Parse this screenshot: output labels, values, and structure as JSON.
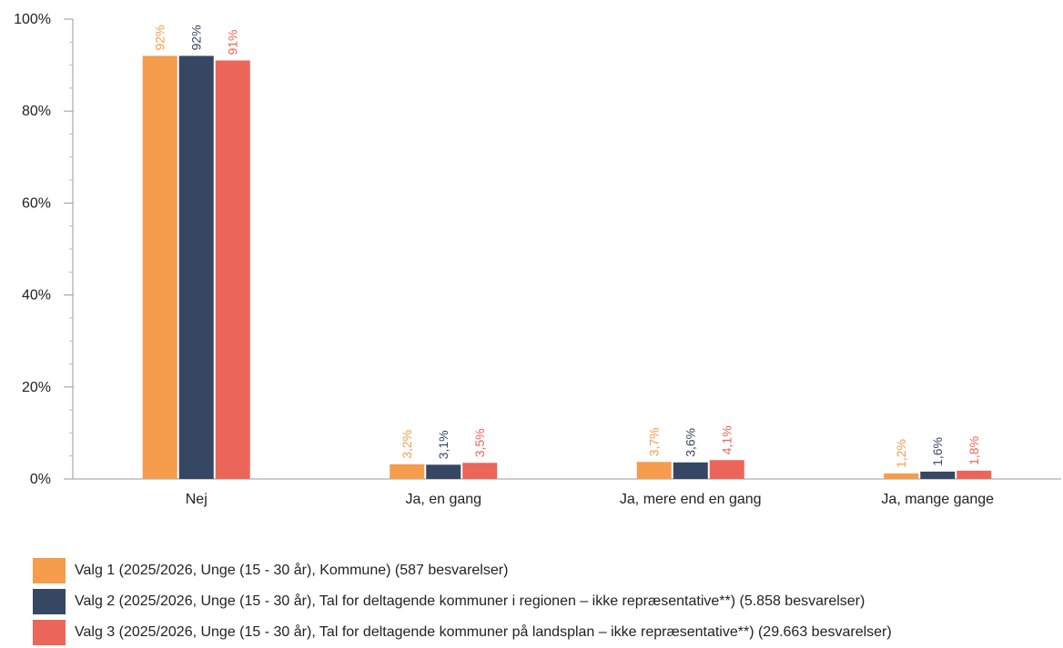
{
  "chart_data": {
    "type": "bar",
    "title": "",
    "xlabel": "",
    "ylabel": "",
    "ylim": [
      0,
      100
    ],
    "yticks": [
      "0%",
      "20%",
      "40%",
      "60%",
      "80%",
      "100%"
    ],
    "grid": false,
    "legend_position": "bottom",
    "categories": [
      "Nej",
      "Ja, en gang",
      "Ja, mere end en gang",
      "Ja, mange gange"
    ],
    "series": [
      {
        "name": "Valg 1 (2025/2026, Unge (15 - 30 år), Kommune) (587 besvarelser)",
        "color": "#f59c4d",
        "values": [
          92,
          3.2,
          3.7,
          1.2
        ],
        "labels": [
          "92%",
          "3,2%",
          "3,7%",
          "1,2%"
        ]
      },
      {
        "name": "Valg 2 (2025/2026, Unge (15 - 30 år), Tal for deltagende kommuner i regionen – ikke repræsentative**) (5.858 besvarelser)",
        "color": "#364764",
        "values": [
          92,
          3.1,
          3.6,
          1.6
        ],
        "labels": [
          "92%",
          "3,1%",
          "3,6%",
          "1,6%"
        ]
      },
      {
        "name": "Valg 3 (2025/2026, Unge (15 - 30 år), Tal for deltagende kommuner på landsplan – ikke repræsentative**) (29.663 besvarelser)",
        "color": "#ec6559",
        "values": [
          91,
          3.5,
          4.1,
          1.8
        ],
        "labels": [
          "91%",
          "3,5%",
          "4,1%",
          "1,8%"
        ]
      }
    ]
  }
}
